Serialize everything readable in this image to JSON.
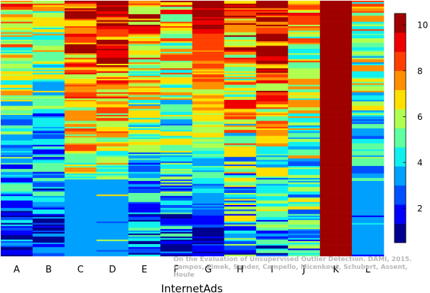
{
  "chart_data": {
    "type": "heatmap",
    "title": "",
    "xlabel": "InternetAds",
    "ylabel": "",
    "columns": [
      "A",
      "B",
      "C",
      "D",
      "E",
      "F",
      "G",
      "H",
      "I",
      "J",
      "K",
      "L"
    ],
    "rows_depicted": 170,
    "row_order": "top = highest average rank, bottom = lowest",
    "colorbar": {
      "min": 0.5,
      "max": 10.5,
      "ticks": [
        2,
        4,
        6,
        8,
        10
      ],
      "colormap": "jet",
      "colors": [
        "#00008f",
        "#0000ff",
        "#0050ff",
        "#00a0ff",
        "#10f0ef",
        "#60ff9f",
        "#b0ff50",
        "#ffdf00",
        "#ff8f00",
        "#ff3f00",
        "#ef0000",
        "#9f0000"
      ]
    },
    "column_profiles": [
      {
        "column": "A",
        "top_value": 7.0,
        "bottom_value": 1.5,
        "noise": 2.2,
        "bottom_block": null
      },
      {
        "column": "B",
        "top_value": 6.5,
        "bottom_value": 1.2,
        "noise": 2.2,
        "bottom_block": null
      },
      {
        "column": "C",
        "top_value": 9.0,
        "bottom_value": 4.5,
        "noise": 2.0,
        "bottom_block": {
          "from": 0.7,
          "value": 3
        }
      },
      {
        "column": "D",
        "top_value": 9.5,
        "bottom_value": 4.0,
        "noise": 2.0,
        "bottom_block": {
          "from": 0.7,
          "value": 3
        }
      },
      {
        "column": "E",
        "top_value": 8.5,
        "bottom_value": 2.0,
        "noise": 2.4,
        "bottom_block": null
      },
      {
        "column": "F",
        "top_value": 7.5,
        "bottom_value": 2.5,
        "noise": 2.4,
        "bottom_block": null
      },
      {
        "column": "G",
        "top_value": 10.3,
        "bottom_value": 1.0,
        "noise": 1.0,
        "bottom_block": null
      },
      {
        "column": "H",
        "top_value": 8.5,
        "bottom_value": 3.0,
        "noise": 2.8,
        "bottom_block": null
      },
      {
        "column": "I",
        "top_value": 10.0,
        "bottom_value": 3.0,
        "noise": 2.2,
        "bottom_block": null
      },
      {
        "column": "J",
        "top_value": 7.0,
        "bottom_value": 4.0,
        "noise": 2.4,
        "bottom_block": null
      },
      {
        "column": "K",
        "top_value": 10.4,
        "bottom_value": 10.4,
        "noise": 0.1,
        "bottom_block": null
      },
      {
        "column": "L",
        "top_value": 6.5,
        "bottom_value": 3.0,
        "noise": 2.2,
        "bottom_block": {
          "from": 0.7,
          "value": 3
        }
      }
    ]
  },
  "watermark": {
    "line1": "On the Evaluation of Unsupervised Outlier Detection. DAMI, 2015.",
    "line2": "Campos, Zimek, Sander, Campello, Micenková, Schubert, Assent, Houle"
  }
}
